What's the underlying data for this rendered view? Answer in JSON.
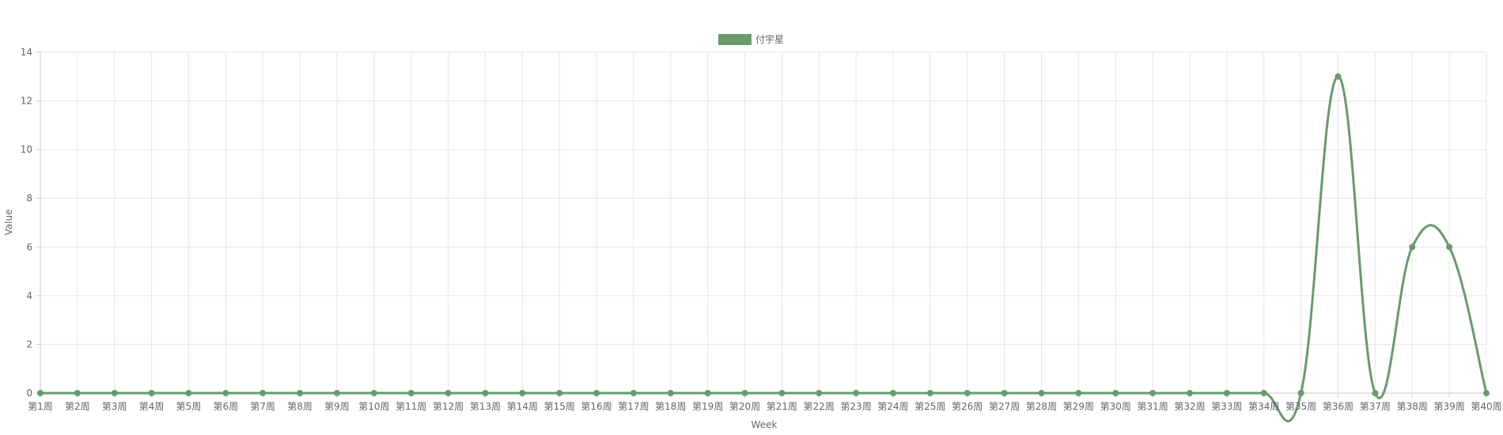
{
  "chart_data": {
    "type": "line",
    "categories": [
      "第1周",
      "第2周",
      "第3周",
      "第4周",
      "第5周",
      "第6周",
      "第7周",
      "第8周",
      "第9周",
      "第10周",
      "第11周",
      "第12周",
      "第13周",
      "第14周",
      "第15周",
      "第16周",
      "第17周",
      "第18周",
      "第19周",
      "第20周",
      "第21周",
      "第22周",
      "第23周",
      "第24周",
      "第25周",
      "第26周",
      "第27周",
      "第28周",
      "第29周",
      "第30周",
      "第31周",
      "第32周",
      "第33周",
      "第34周",
      "第35周",
      "第36周",
      "第37周",
      "第38周",
      "第39周",
      "第40周"
    ],
    "series": [
      {
        "name": "付宇星",
        "color": "#6a9a6c",
        "values": [
          0,
          0,
          0,
          0,
          0,
          0,
          0,
          0,
          0,
          0,
          0,
          0,
          0,
          0,
          0,
          0,
          0,
          0,
          0,
          0,
          0,
          0,
          0,
          0,
          0,
          0,
          0,
          0,
          0,
          0,
          0,
          0,
          0,
          0,
          0,
          13,
          0,
          6,
          6,
          0
        ]
      }
    ],
    "xlabel": "Week",
    "ylabel": "Value",
    "ylim": [
      0,
      14
    ],
    "yticks": [
      0,
      2,
      4,
      6,
      8,
      10,
      12,
      14
    ],
    "grid": true,
    "legend_position": "top-center",
    "smooth": true
  }
}
